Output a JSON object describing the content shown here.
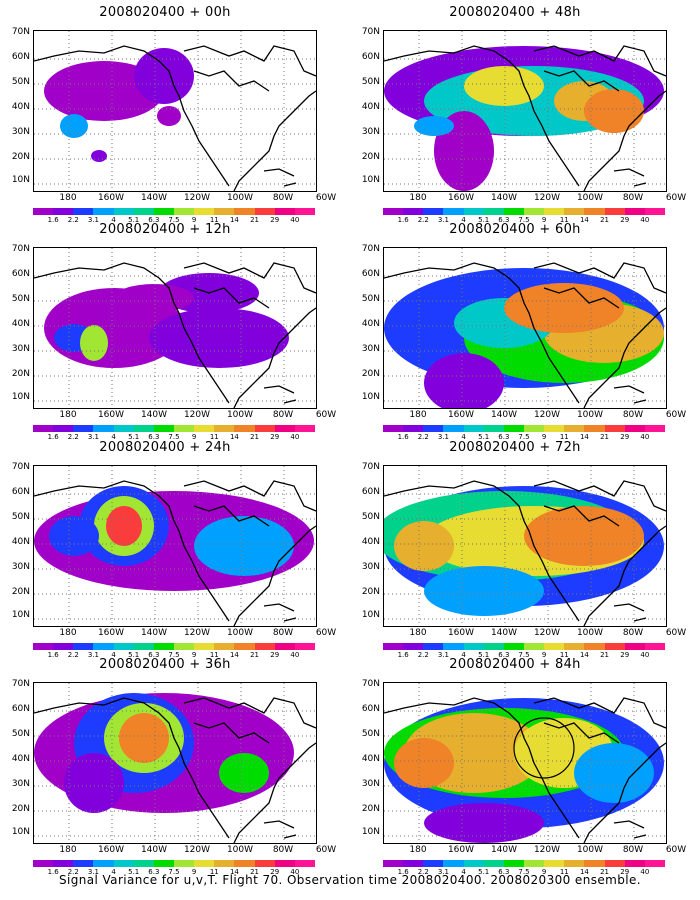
{
  "panels": [
    {
      "title": "2008020400 + 00h"
    },
    {
      "title": "2008020400 + 48h"
    },
    {
      "title": "2008020400 + 12h"
    },
    {
      "title": "2008020400 + 60h"
    },
    {
      "title": "2008020400 + 24h"
    },
    {
      "title": "2008020400 + 72h"
    },
    {
      "title": "2008020400 + 36h"
    },
    {
      "title": "2008020400 + 84h"
    }
  ],
  "lat_labels": [
    "70N",
    "60N",
    "50N",
    "40N",
    "30N",
    "20N",
    "10N"
  ],
  "lon_labels": [
    "180",
    "160W",
    "140W",
    "120W",
    "100W",
    "80W",
    "60W"
  ],
  "colorbar": {
    "levels": [
      "1.6",
      "2.2",
      "3.1",
      "4",
      "5.1",
      "6.3",
      "7.5",
      "9",
      "11",
      "14",
      "21",
      "29",
      "40"
    ],
    "colors": [
      "#a000c8",
      "#8200dc",
      "#1e3cff",
      "#00a0ff",
      "#00c8c8",
      "#00d28c",
      "#00dc00",
      "#a0e632",
      "#e6dc32",
      "#e6af2d",
      "#f08228",
      "#fa3c3c",
      "#f00082",
      "#ff1493"
    ]
  },
  "caption": "Signal Variance for u,v,T. Flight 70. Observation time 2008020400. 2008020300 ensemble."
}
